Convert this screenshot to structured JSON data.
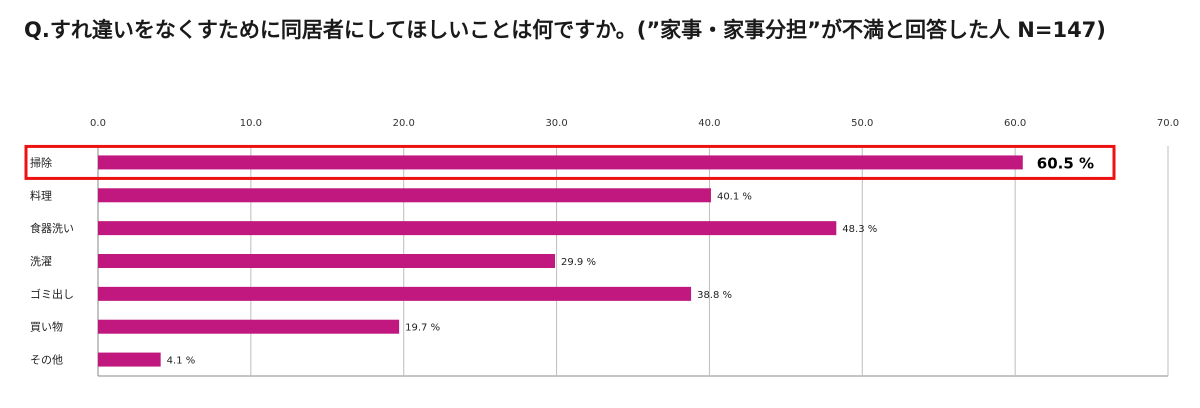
{
  "title": "Q.すれ違いをなくすために同居者にしてほしいことは何ですか。(”家事・家事分担”が不満と回答した人 N=147)",
  "colors": {
    "bar": "#c0187f",
    "highlight": "#ee1111",
    "grid": "#bdbdbd"
  },
  "chart_data": {
    "type": "bar",
    "orientation": "horizontal",
    "title": "Q.すれ違いをなくすために同居者にしてほしいことは何ですか。(”家事・家事分担”が不満と回答した人 N=147)",
    "categories": [
      "掃除",
      "料理",
      "食器洗い",
      "洗濯",
      "ゴミ出し",
      "買い物",
      "その他"
    ],
    "values": [
      60.5,
      40.1,
      48.3,
      29.9,
      38.8,
      19.7,
      4.1
    ],
    "value_labels": [
      "60.5 %",
      "40.1 %",
      "48.3 %",
      "29.9 %",
      "38.8 %",
      "19.7 %",
      "4.1 %"
    ],
    "xlim": [
      0,
      70
    ],
    "xticks": [
      "0.0",
      "10.0",
      "20.0",
      "30.0",
      "40.0",
      "50.0",
      "60.0",
      "70.0"
    ],
    "xaxis_position": "top",
    "grid": true,
    "highlighted_category": "掃除"
  }
}
